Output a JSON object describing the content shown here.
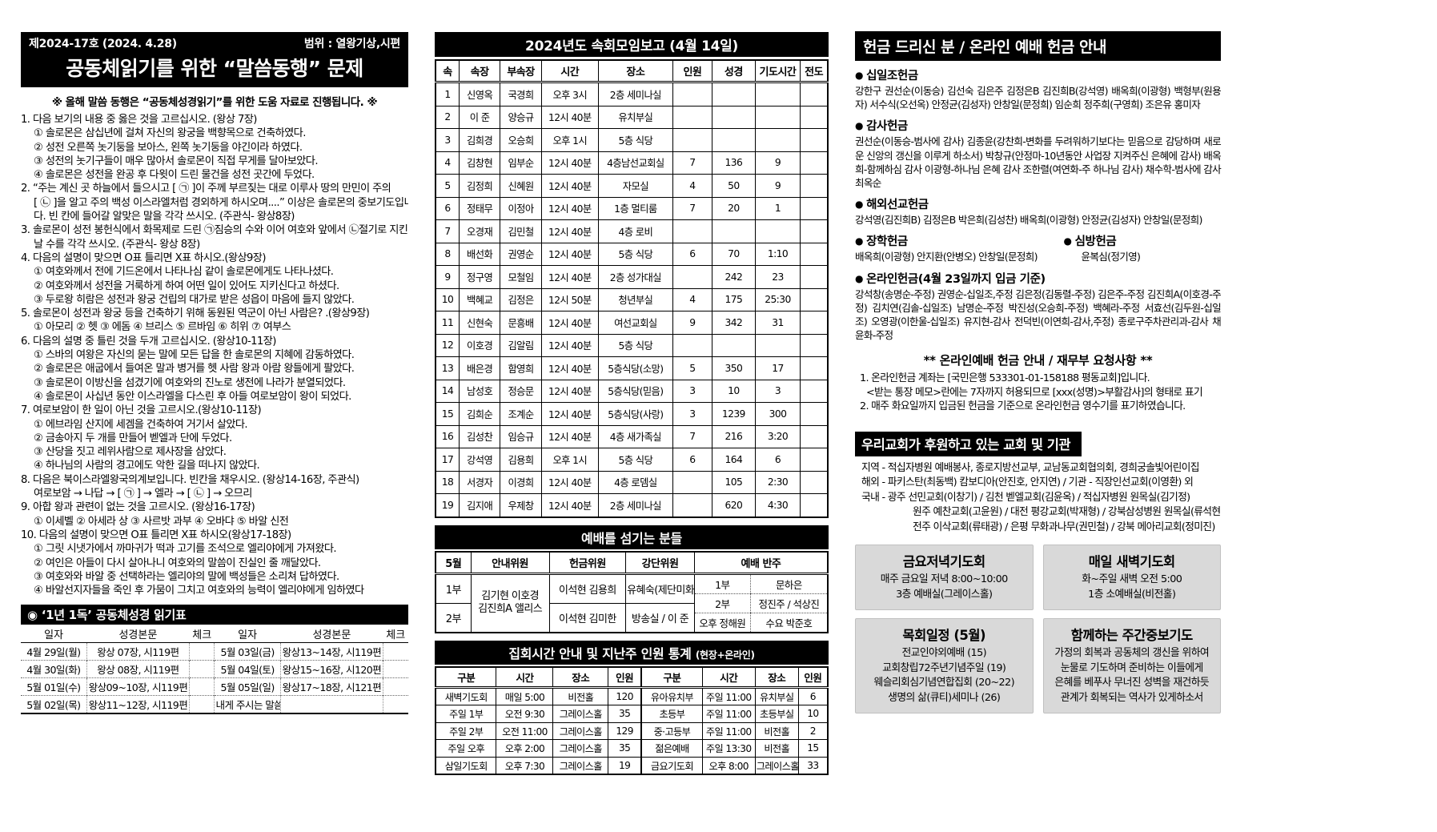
{
  "left": {
    "issue_no": "제2024-17호 (2024. 4.28)",
    "scope": "범위 : 열왕기상,시편",
    "masthead_title": "공동체읽기를 위한 “말씀동행” 문제",
    "note": "※ 올해 말씀 동행은 “공동체성경읽기”를 위한 도움 자료로 진행됩니다. ※",
    "question_lines": [
      [
        0,
        "1. 다음 보기의 내용 중 옳은 것을 고르십시오. (왕상 7장)"
      ],
      [
        1,
        "① 솔로몬은 삼십년에 걸쳐 자신의 왕궁을 백향목으로 건축하였다."
      ],
      [
        1,
        "② 성전 오른쪽 놋기둥을 보아스, 왼쪽 놋기둥을 야긴이라 하였다."
      ],
      [
        1,
        "③ 성전의 놋기구들이 매우 많아서 솔로몬이 직접 무게를 달아보았다."
      ],
      [
        1,
        "④ 솔로몬은 성전을 완공 후 다윗이 드린 물건을 성전 곳간에 두었다."
      ],
      [
        0,
        "2. “주는 계신 곳 하늘에서 들으시고 [ ㉠ ]이 주께 부르짖는 대로 이루사 땅의 만민이 주의"
      ],
      [
        1,
        "[ ㉡ ]을 알고 주의 백성 이스라엘처럼 경외하게 하시오며....” 이상은 솔로몬의 중보기도입니"
      ],
      [
        1,
        "다. 빈 칸에 들어갈 알맞은 말을 각각 쓰시오. (주관식- 왕상8장)"
      ],
      [
        0,
        "3. 솔로몬이 성전 봉헌식에서 화목제로 드린 ㉠짐승의 수와 이어 여호와 앞에서 ㉡절기로 지킨"
      ],
      [
        1,
        "날 수를 각각 쓰시오. (주관식- 왕상 8장)"
      ],
      [
        0,
        "4. 다음의 설명이 맞으면 O표 틀리면 X표 하시오.(왕상9장)"
      ],
      [
        1,
        "① 여호와께서 전에 기드온에서 나타나심 같이 솔로몬에게도 나타나셨다."
      ],
      [
        1,
        "② 여호와께서 성전을 거룩하게 하여 어떤 일이 있어도 지키신다고 하셨다."
      ],
      [
        1,
        "③ 두로왕 히람은 성전과 왕궁 건립의 대가로 받은 성읍이 마음에 들지 않았다."
      ],
      [
        0,
        "5. 솔로몬이 성전과 왕궁 등을 건축하기 위해 동원된 역군이 아닌 사람은? .(왕상9장)"
      ],
      [
        1,
        "① 아모리 ② 헷 ③ 에돔 ④ 브리스 ⑤ 르바임 ⑥ 히위 ⑦ 여부스"
      ],
      [
        0,
        "6. 다음의 설명 중 틀린 것을 두개 고르십시오. (왕상10-11장)"
      ],
      [
        1,
        "① 스바의 여왕은 자신의 묻는 말에 모든 답을 한 솔로몬의 지혜에 감동하였다."
      ],
      [
        1,
        "② 솔로몬은 애굽에서 들여온 말과 병거를 헷 사람 왕과 아람 왕들에게 팔았다."
      ],
      [
        1,
        "③ 솔로몬이 이방신을 섬겼기에 여호와의 진노로 생전에 나라가 분열되었다."
      ],
      [
        1,
        "④ 솔로몬이 사십년 동안 이스라엘을 다스린 후 아들 여로보암이 왕이 되었다."
      ],
      [
        0,
        "7. 여로보암이 한 일이 아닌 것을 고르시오.(왕상10-11장)"
      ],
      [
        1,
        "① 에브라임 산지에 세겜을 건축하여 거기서 살았다."
      ],
      [
        1,
        "② 금송아지 두 개를 만들어 벧엘과 단에 두었다."
      ],
      [
        1,
        "③ 산당을 짓고 레위사람으로 제사장을 삼았다."
      ],
      [
        1,
        "④ 하나님의 사람의 경고에도 악한 길을 떠나지 않았다."
      ],
      [
        0,
        "8. 다음은 북이스라엘왕국의계보입니다. 빈칸을 채우시오. (왕상14-16장, 주관식)"
      ],
      [
        1,
        "여로보암 → 나답 → [ ㉠ ] → 엘라 → [ ㉡ ] → 오므리"
      ],
      [
        0,
        "9. 아합 왕과 관련이 없는 것을 고르시오. (왕상16-17장)"
      ],
      [
        1,
        "① 이세벨 ② 아세라 상 ③ 사르밧 과부 ④ 오바댜 ⑤ 바알 신전"
      ],
      [
        0,
        "10. 다음의 설명이 맞으면 O표 틀리면 X표 하시오(왕상17-18장)"
      ],
      [
        1,
        "① 그릿 시냇가에서 까마귀가 떡과 고기를 조석으로 엘리야에게 가져왔다."
      ],
      [
        1,
        "② 여인은 아들이 다시 살아나니 여호와의 말씀이 진실인 줄 깨달았다."
      ],
      [
        1,
        "③ 여호와와 바알 중 선택하라는 엘리야의 말에 백성들은 소리쳐 답하였다."
      ],
      [
        1,
        "④ 바알선지자들을 죽인 후 가뭄이 그치고 여호와의 능력이 엘리야에게 임하였다"
      ]
    ],
    "reading": {
      "title": "◉ ‘1년 1독’ 공동체성경 읽기표",
      "headers": [
        "일자",
        "성경본문",
        "체크",
        "일자",
        "성경본문",
        "체크"
      ],
      "rows": [
        [
          "4월 29일(월)",
          "왕상 07장, 시119편",
          "",
          "5월 03일(금)",
          "왕상13~14장, 시119편",
          ""
        ],
        [
          "4월 30일(화)",
          "왕상 08장, 시119편",
          "",
          "5월 04일(토)",
          "왕상15~16장, 시120편",
          ""
        ],
        [
          "5월 01일(수)",
          "왕상09~10장, 시119편",
          "",
          "5월 05일(일)",
          "왕상17~18장, 시121편",
          ""
        ],
        [
          "5월 02일(목)",
          "왕상11~12장, 시119편",
          "",
          "내게 주시는 말씀",
          "",
          ""
        ]
      ]
    }
  },
  "middle": {
    "report": {
      "title": "2024년도 속회모임보고 (4월 14일)",
      "headers": [
        "속",
        "속장",
        "부속장",
        "시간",
        "장소",
        "인원",
        "성경",
        "기도시간",
        "전도"
      ],
      "rows": [
        [
          "1",
          "신영옥",
          "국경희",
          "오후 3시",
          "2층 세미나실",
          "",
          "",
          "",
          ""
        ],
        [
          "2",
          "이 준",
          "양승규",
          "12시 40분",
          "유치부실",
          "",
          "",
          "",
          ""
        ],
        [
          "3",
          "김희경",
          "오승희",
          "오후 1시",
          "5층 식당",
          "",
          "",
          "",
          ""
        ],
        [
          "4",
          "김창현",
          "임부순",
          "12시 40분",
          "4층남선교회실",
          "7",
          "136",
          "9",
          ""
        ],
        [
          "5",
          "김정희",
          "신혜원",
          "12시 40분",
          "자모실",
          "4",
          "50",
          "9",
          ""
        ],
        [
          "6",
          "정태무",
          "이정아",
          "12시 40분",
          "1층 멀티룸",
          "7",
          "20",
          "1",
          ""
        ],
        [
          "7",
          "오경재",
          "김민철",
          "12시 40분",
          "4층 로비",
          "",
          "",
          "",
          ""
        ],
        [
          "8",
          "배선화",
          "권영순",
          "12시 40분",
          "5층 식당",
          "6",
          "70",
          "1:10",
          ""
        ],
        [
          "9",
          "정구영",
          "모철임",
          "12시 40분",
          "2층 성가대실",
          "",
          "242",
          "23",
          ""
        ],
        [
          "10",
          "백혜교",
          "김정은",
          "12시 50분",
          "청년부실",
          "4",
          "175",
          "25:30",
          ""
        ],
        [
          "11",
          "신현숙",
          "문흥배",
          "12시 40분",
          "여선교회실",
          "9",
          "342",
          "31",
          ""
        ],
        [
          "12",
          "이호경",
          "김알림",
          "12시 40분",
          "5층 식당",
          "",
          "",
          "",
          ""
        ],
        [
          "13",
          "배은경",
          "함영희",
          "12시 40분",
          "5층식당(소망)",
          "5",
          "350",
          "17",
          ""
        ],
        [
          "14",
          "남성호",
          "정승문",
          "12시 40분",
          "5층식당(믿음)",
          "3",
          "10",
          "3",
          ""
        ],
        [
          "15",
          "김희순",
          "조계순",
          "12시 40분",
          "5층식당(사랑)",
          "3",
          "1239",
          "300",
          ""
        ],
        [
          "16",
          "김성찬",
          "임승규",
          "12시 40분",
          "4층 새가족실",
          "7",
          "216",
          "3:20",
          ""
        ],
        [
          "17",
          "강석영",
          "김용희",
          "오후 1시",
          "5층 식당",
          "6",
          "164",
          "6",
          ""
        ],
        [
          "18",
          "서경자",
          "이경희",
          "12시 40분",
          "4층 로뎀실",
          "",
          "105",
          "2:30",
          ""
        ],
        [
          "19",
          "김지애",
          "우제창",
          "12시 40분",
          "2층 세미나실",
          "",
          "620",
          "4:30",
          ""
        ]
      ]
    },
    "servers": {
      "title": "예배를 섬기는 분들",
      "headers": [
        "5월",
        "안내위원",
        "헌금위원",
        "강단위원",
        "예배 반주"
      ],
      "row1_label": "1부",
      "row2_label": "2부",
      "usher_line1": "김기현 이호경",
      "usher_line2": "김진희A 앨리스",
      "offering_1": "이석현 김용희",
      "offering_2": "이석현 김미한",
      "pulpit_1": "유혜숙(제단미화)",
      "pulpit_2": "방송실 / 이 준",
      "accomp_rows": [
        [
          "1부",
          "문하은"
        ],
        [
          "2부",
          "정진주 / 석상진"
        ],
        [
          "오후 정해원",
          "수요 박준호"
        ]
      ]
    },
    "schedule": {
      "title": "집회시간 안내 및 지난주 인원 통계",
      "title_suffix": "(현장+온라인)",
      "headers": [
        "구분",
        "시간",
        "장소",
        "인원",
        "구분",
        "시간",
        "장소",
        "인원"
      ],
      "rows": [
        [
          "새벽기도회",
          "매일 5:00",
          "비전홀",
          "120",
          "유아유치부",
          "주일 11:00",
          "유치부실",
          "6"
        ],
        [
          "주일 1부",
          "오전 9:30",
          "그레이스홀",
          "35",
          "초등부",
          "주일 11:00",
          "초등부실",
          "10"
        ],
        [
          "주일 2부",
          "오전 11:00",
          "그레이스홀",
          "129",
          "중·고등부",
          "주일 11:00",
          "비전홀",
          "2"
        ],
        [
          "주일 오후",
          "오후 2:00",
          "그레이스홀",
          "35",
          "젊은예배",
          "주일 13:30",
          "비전홀",
          "15"
        ],
        [
          "삼일기도회",
          "오후 7:30",
          "그레이스홀",
          "19",
          "금요기도회",
          "오후 8:00",
          "그레이스홀",
          "33"
        ]
      ]
    }
  },
  "right": {
    "title": "헌금 드리신 분 / 온라인 예배 헌금 안내",
    "bullet_glyph": "●",
    "sections": [
      {
        "label": "십일조헌금",
        "text": "강한구 권선순(이동승) 김선숙 김은주 김정은B 김진희B(강석영) 배옥희(이광형) 백형부(원용자) 서수식(오선옥) 안정균(김성자) 안창일(문정희) 임순희 정주희(구영희) 조은유 홍미자"
      },
      {
        "label": "감사헌금",
        "text": "권선순(이동승-범사에 감사)  김종윤(강찬희-변화를 두려워하기보다는 믿음으로 감당하며 새로운 신앙의 갱신을 이루게 하소서)  박창규(안정마-10년동안 사업장 지켜주신 은혜에 감사)  배옥희-함께하심 감사  이광형-하나님 은혜 감사  조한렬(여연화-주 하나님 감사)  채수학-범사에 감사  최옥순"
      },
      {
        "label": "해외선교헌금",
        "text": "강석영(김진희B)  김정은B  박은희(김성찬)  배옥희(이광형)  안정균(김성자)  안창일(문정희)"
      }
    ],
    "scholarship": {
      "label": "장학헌금",
      "text": "배옥희(이광형)  안지환(안병오)  안창일(문정희)"
    },
    "visitation": {
      "label": "심방헌금",
      "text": "윤복심(정기영)"
    },
    "online": {
      "label": "온라인헌금(4월 23일까지 입금 기준)",
      "text": "강석창(송명순-주정)  권영순-십일조,주정  김은정(김동렬-주정)  김은주-주정  김진희A(이호경-주정)  김치연(김솔-십일조)  남명순-주정  박진성(오승희-주정)  백혜라-주정  서효선(김두원-십일조)  오영광(이한울-십일조)  유지현-감사  전덕빈(이연희-감사,주정)  종로구주차관리과-감사  채윤화-주정"
    },
    "notice": {
      "title": "** 온라인예배 헌금 안내 / 재무부 요청사항 **",
      "items": [
        [
          0,
          "1. 온라인헌금 계좌는 [국민은행 533301-01-158188 평동교회]입니다."
        ],
        [
          1,
          "<받는 통장 메모>란에는 7자까지 허용되므로 [xxx(성명)>부활감사]의 형태로 표기"
        ],
        [
          0,
          "2. 매주 화요일까지 입금된 헌금을 기준으로 온라인헌금 영수기를 표기하였습니다."
        ]
      ]
    },
    "support": {
      "title": "우리교회가 후원하고 있는 교회 및 기관",
      "lines": [
        [
          0,
          "지역 - 적십자병원 예배봉사, 종로지방선교부, 교남동교회협의회, 경희궁솔빛어린이집"
        ],
        [
          0,
          "해외 - 파키스탄(최동백) 캄보디아(안진호, 안지연) / 기관 - 직장인선교회(이영환) 외"
        ],
        [
          0,
          "국내 - 광주 선민교회(이창기) / 김천 벧엘교회(김윤옥) / 적십자병원 원목실(김기정)"
        ],
        [
          1,
          "원주 예찬교회(고윤원) / 대전 평강교회(박재형) / 강북삼성병원 원목실(류석현)"
        ],
        [
          1,
          "전주 이삭교회(류태광) / 은평 무화과나무(권민철) / 강북 메아리교회(정미진)"
        ]
      ]
    },
    "boxes": [
      {
        "title": "금요저녁기도회",
        "lines": [
          "매주 금요일 저녁 8:00~10:00",
          "3층 예배실(그레이스홀)"
        ]
      },
      {
        "title": "매일 새벽기도회",
        "lines": [
          "화~주일 새벽 오전 5:00",
          "1층 소예배실(비전홀)"
        ]
      },
      {
        "title": "목회일정 (5월)",
        "lines": [
          "전교인야외예배 (15)",
          "교회창립72주년기념주일 (19)",
          "웨슬리회심기념연합집회 (20~22)",
          "생명의 삶(큐티)세미나 (26)"
        ]
      },
      {
        "title": "함께하는 주간중보기도",
        "lines": [
          "가정의 회복과 공동체의 갱신을 위하여",
          "눈물로 기도하며 준비하는 이들에게",
          "은혜를 베푸사 무너진 성벽을 재건하듯",
          "관계가 회복되는 역사가 있게하소서"
        ]
      }
    ]
  }
}
